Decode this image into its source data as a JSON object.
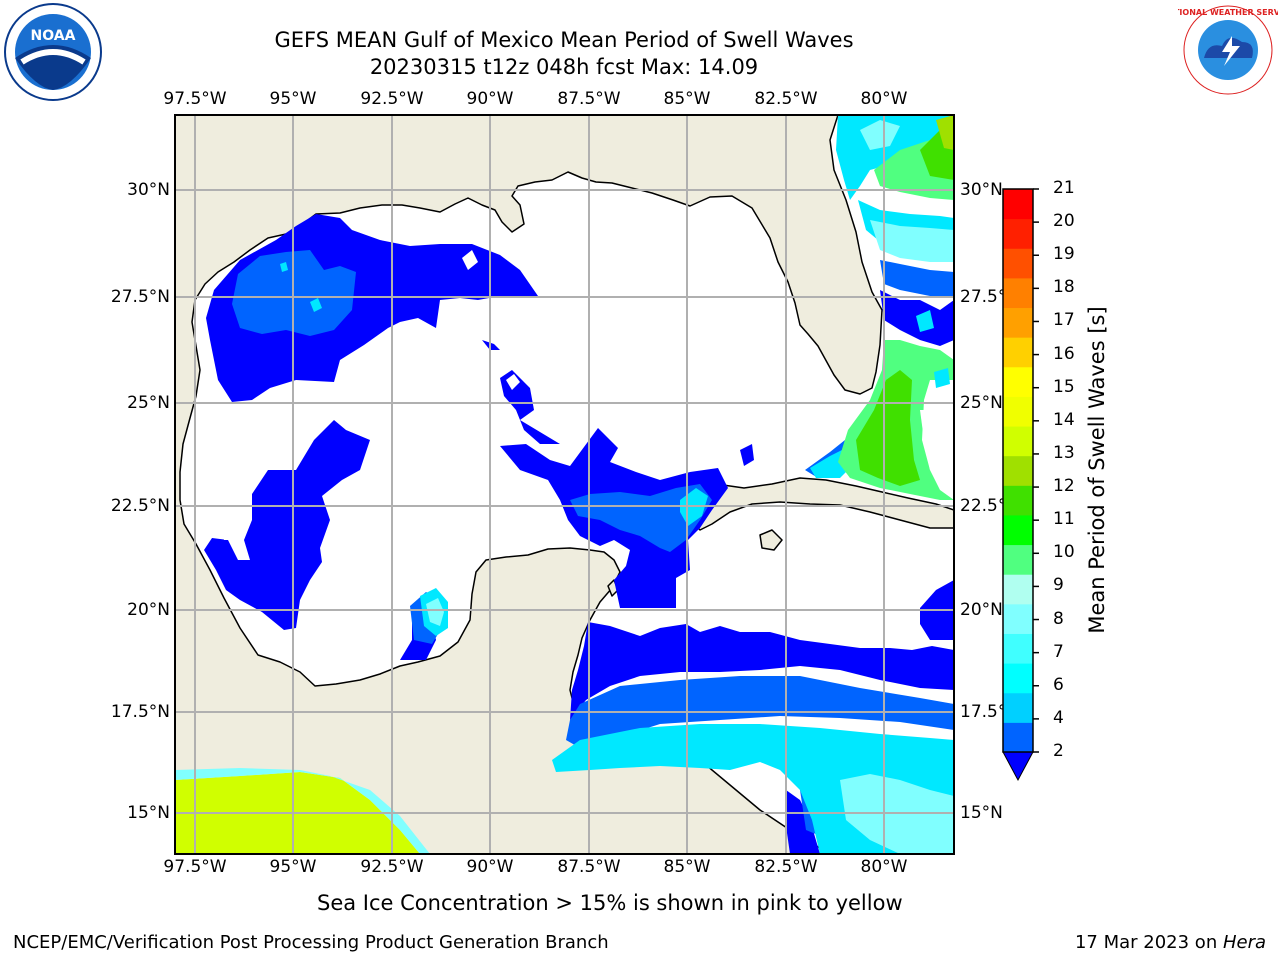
{
  "title": {
    "line1": "GEFS MEAN Gulf of Mexico Mean Period of Swell Waves",
    "line2": "20230315 t12z 048h fcst   Max: 14.09"
  },
  "map": {
    "lon_labels": [
      "97.5°W",
      "95°W",
      "92.5°W",
      "90°W",
      "87.5°W",
      "85°W",
      "82.5°W",
      "80°W"
    ],
    "lat_labels_left": [
      "30°N",
      "27.5°N",
      "25°N",
      "22.5°N",
      "20°N",
      "17.5°N",
      "15°N"
    ],
    "lat_labels_right": [
      "30°N",
      "27.5°N",
      "25°N",
      "22.5°N",
      "20°N",
      "17.5°N",
      "15°N"
    ],
    "land_color": "#efedde",
    "ocean_color": "#ffffff",
    "grid_color": "#b0b0b0"
  },
  "colorbar": {
    "label": "Mean Period of Swell Waves [s]",
    "ticks": [
      "2",
      "4",
      "6",
      "7",
      "8",
      "9",
      "10",
      "11",
      "12",
      "13",
      "14",
      "15",
      "16",
      "17",
      "18",
      "19",
      "20",
      "21"
    ],
    "colors": [
      "#0064ff",
      "#00d0ff",
      "#00ffff",
      "#40ffff",
      "#80ffff",
      "#b0fff0",
      "#50ff80",
      "#00ff00",
      "#40e000",
      "#a0e000",
      "#d0ff00",
      "#f0ff00",
      "#ffff00",
      "#ffd000",
      "#ffa000",
      "#ff8000",
      "#ff5000",
      "#ff2000",
      "#ff0000"
    ],
    "extend_color": "#0000ff"
  },
  "caption": "Sea Ice Concentration > 15% is shown in pink to yellow",
  "footer": {
    "left": "NCEP/EMC/Verification Post Processing Product Generation Branch",
    "right_prefix": "17 Mar 2023 on ",
    "right_host": "Hera"
  },
  "logos": {
    "noaa_text": "NOAA",
    "nws_text": "NATIONAL WEATHER SERVICE"
  }
}
